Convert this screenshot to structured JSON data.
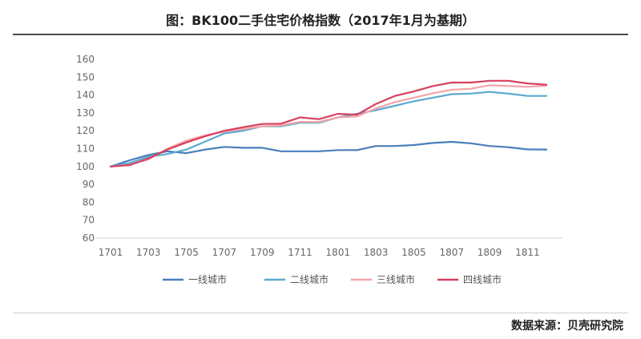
{
  "title": "图：BK100二手住宅价格指数（2017年1月为基期）",
  "source": "数据来源：贝壳研究院",
  "chart_data": {
    "type": "line",
    "title": "图：BK100二手住宅价格指数（2017年1月为基期）",
    "xlabel": "",
    "ylabel": "",
    "ylim": [
      60,
      160
    ],
    "yticks": [
      60,
      70,
      80,
      90,
      100,
      110,
      120,
      130,
      140,
      150,
      160
    ],
    "x": [
      "1701",
      "1702",
      "1703",
      "1704",
      "1705",
      "1706",
      "1707",
      "1708",
      "1709",
      "1710",
      "1711",
      "1712",
      "1801",
      "1802",
      "1803",
      "1804",
      "1805",
      "1806",
      "1807",
      "1808",
      "1809",
      "1810",
      "1811",
      "1812"
    ],
    "xtick_labels": [
      "1701",
      "1703",
      "1705",
      "1707",
      "1709",
      "1711",
      "1801",
      "1803",
      "1805",
      "1807",
      "1809",
      "1811"
    ],
    "grid": false,
    "legend_position": "bottom",
    "series": [
      {
        "name": "一线城市",
        "color": "#4a7ebb",
        "values": [
          100,
          103.5,
          106.5,
          108.5,
          107.5,
          109.5,
          111,
          110.5,
          110.5,
          108.5,
          108.5,
          108.5,
          109.2,
          109.2,
          111.5,
          111.5,
          112,
          113.2,
          113.8,
          113,
          111.5,
          110.8,
          109.6,
          109.5
        ]
      },
      {
        "name": "二线城市",
        "color": "#5aaad0",
        "values": [
          100,
          102,
          105.5,
          107,
          109.5,
          114,
          118.5,
          120,
          122.5,
          122.5,
          124.5,
          124.5,
          127.5,
          129.5,
          131.5,
          134,
          136.5,
          138.5,
          140.5,
          140.8,
          141.8,
          140.8,
          139.5,
          139.5
        ]
      },
      {
        "name": "三线城市",
        "color": "#f4a3a8",
        "values": [
          100,
          101,
          104,
          110,
          114.5,
          117.5,
          119.5,
          121,
          122.5,
          123,
          125,
          125,
          127.5,
          128,
          132.5,
          136,
          138.5,
          141,
          143,
          143.5,
          145.5,
          145,
          144.6,
          145.2
        ]
      },
      {
        "name": "四线城市",
        "color": "#d6405d",
        "values": [
          100,
          100.8,
          104.5,
          109.5,
          113.5,
          117,
          120,
          122,
          123.8,
          124,
          127.5,
          126.5,
          129.5,
          129,
          135,
          139.5,
          142,
          145,
          147,
          147,
          148,
          148,
          146.5,
          145.8
        ]
      }
    ]
  }
}
